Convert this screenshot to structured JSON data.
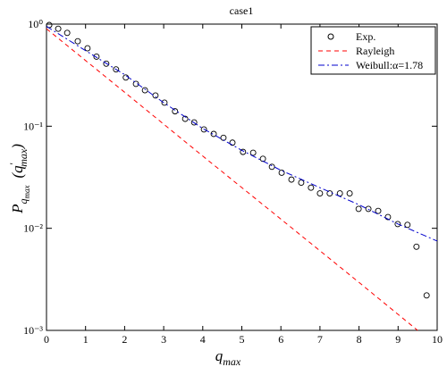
{
  "chart_data": {
    "type": "line",
    "title": "case1",
    "x_label": {
      "main": "q",
      "sub": "max"
    },
    "y_label": {
      "main": "P",
      "sub": "q",
      "subsub": "max",
      "open": "(q",
      "prime": "′",
      "argsub": "max",
      "close": ")"
    },
    "xlim": [
      0,
      10
    ],
    "xticks": [
      0,
      1,
      2,
      3,
      4,
      5,
      6,
      7,
      8,
      9,
      10
    ],
    "ylim": [
      0.001,
      1
    ],
    "ylog": true,
    "yticks": [
      {
        "value": 1,
        "label": "10⁰"
      },
      {
        "value": 0.1,
        "label": "10⁻¹"
      },
      {
        "value": 0.01,
        "label": "10⁻²"
      },
      {
        "value": 0.001,
        "label": "10⁻³"
      }
    ],
    "legend": "upper right",
    "series": [
      {
        "name": "Exp.",
        "color": "#000000",
        "style": "circles",
        "x": [
          0.07,
          0.3,
          0.53,
          0.8,
          1.05,
          1.28,
          1.53,
          1.78,
          2.03,
          2.29,
          2.52,
          2.79,
          3.02,
          3.29,
          3.55,
          3.78,
          4.03,
          4.28,
          4.53,
          4.76,
          5.03,
          5.29,
          5.54,
          5.77,
          6.02,
          6.27,
          6.52,
          6.77,
          7.0,
          7.25,
          7.51,
          7.76,
          7.99,
          8.24,
          8.49,
          8.74,
          8.99,
          9.24,
          9.47,
          9.73
        ],
        "values": [
          0.98,
          0.9,
          0.82,
          0.68,
          0.58,
          0.48,
          0.41,
          0.36,
          0.3,
          0.26,
          0.225,
          0.2,
          0.17,
          0.14,
          0.118,
          0.109,
          0.093,
          0.084,
          0.077,
          0.069,
          0.056,
          0.055,
          0.048,
          0.04,
          0.035,
          0.03,
          0.028,
          0.025,
          0.022,
          0.022,
          0.022,
          0.022,
          0.0155,
          0.0155,
          0.0148,
          0.0129,
          0.011,
          0.0108,
          0.0066,
          0.0022
        ]
      },
      {
        "name": "Rayleigh",
        "color": "#ff0000",
        "style": "dashed",
        "x": [
          0,
          2,
          4,
          6,
          8,
          9.5
        ],
        "values": [
          0.9,
          0.215,
          0.051,
          0.0123,
          0.00295,
          0.001
        ]
      },
      {
        "name": "Weibull:α=1.78",
        "color": "#0000cc",
        "style": "dashdot",
        "x": [
          0,
          1,
          2,
          3,
          4,
          5,
          6,
          7,
          8,
          9,
          10
        ],
        "values": [
          0.95,
          0.55,
          0.32,
          0.17,
          0.095,
          0.058,
          0.037,
          0.025,
          0.017,
          0.011,
          0.0075
        ]
      }
    ]
  }
}
